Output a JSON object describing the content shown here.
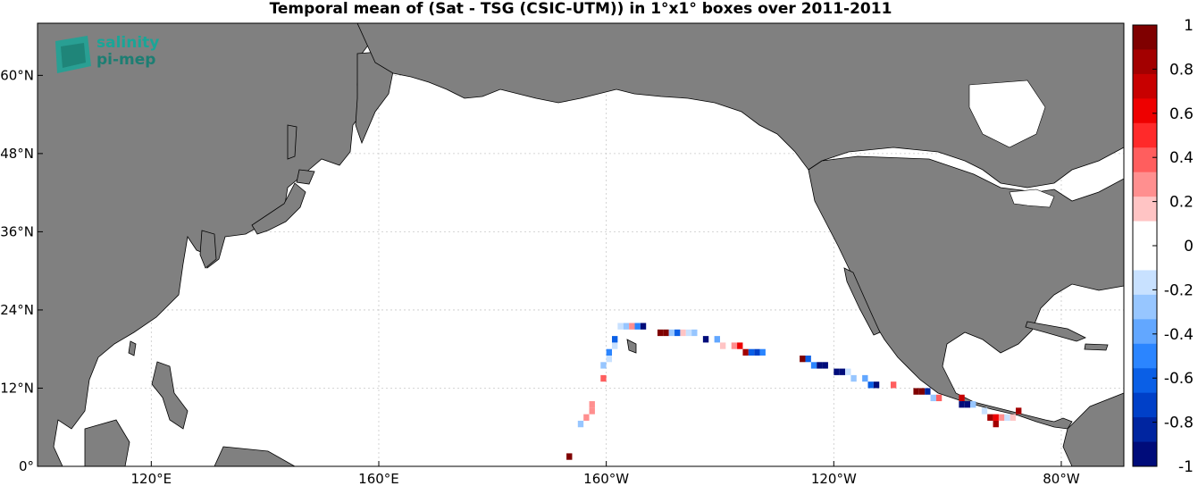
{
  "title": "Temporal mean of (Sat - TSG (CSIC-UTM)) in 1°x1° boxes over 2011-2011",
  "logo": {
    "line1": "salinity",
    "line2": "pi-mep"
  },
  "axes": {
    "lon_ticks": [
      {
        "lon": 120,
        "label": "120°E"
      },
      {
        "lon": 160,
        "label": "160°E"
      },
      {
        "lon": 200,
        "label": "160°W"
      },
      {
        "lon": 240,
        "label": "120°W"
      },
      {
        "lon": 280,
        "label": "80°W"
      }
    ],
    "lat_ticks": [
      {
        "lat": 0,
        "label": "0°"
      },
      {
        "lat": 12,
        "label": "12°N"
      },
      {
        "lat": 24,
        "label": "24°N"
      },
      {
        "lat": 36,
        "label": "36°N"
      },
      {
        "lat": 48,
        "label": "48°N"
      },
      {
        "lat": 60,
        "label": "60°N"
      }
    ],
    "lon_range": [
      100,
      291
    ],
    "lat_range": [
      0,
      68
    ]
  },
  "colorbar": {
    "min": -1,
    "max": 1,
    "labels": [
      "1",
      "0.8",
      "0.6",
      "0.4",
      "0.2",
      "0",
      "-0.2",
      "-0.4",
      "-0.6",
      "-0.8",
      "-1"
    ],
    "colors": [
      "#7f0000",
      "#a30000",
      "#c80000",
      "#ee0000",
      "#ff2a2a",
      "#ff5e5e",
      "#ff8f8f",
      "#ffc4c4",
      "#ffffff",
      "#ffffff",
      "#c8e1ff",
      "#97c6ff",
      "#62a7ff",
      "#2b85ff",
      "#0a5fe6",
      "#0040c8",
      "#0025a0",
      "#000c7a"
    ]
  },
  "colors": {
    "land": "#808080",
    "ocean": "#ffffff",
    "grid": "#c8c8c8"
  },
  "chart_data": {
    "type": "heatmap",
    "title": "Temporal mean of (Sat - TSG (CSIC-UTM)) in 1°x1° boxes over 2011-2011",
    "units_range": [
      -1,
      1
    ],
    "cells": [
      {
        "lon": 193.5,
        "lat": 1.5,
        "v": 0.9
      },
      {
        "lon": 195.5,
        "lat": 6.5,
        "v": -0.3
      },
      {
        "lon": 196.5,
        "lat": 7.5,
        "v": 0.3
      },
      {
        "lon": 197.5,
        "lat": 8.5,
        "v": 0.3
      },
      {
        "lon": 197.5,
        "lat": 9.5,
        "v": 0.3
      },
      {
        "lon": 199.5,
        "lat": 13.5,
        "v": 0.4
      },
      {
        "lon": 199.5,
        "lat": 15.5,
        "v": -0.3
      },
      {
        "lon": 200.5,
        "lat": 16.5,
        "v": -0.2
      },
      {
        "lon": 200.5,
        "lat": 17.5,
        "v": -0.5
      },
      {
        "lon": 201.5,
        "lat": 18.5,
        "v": -0.2
      },
      {
        "lon": 201.5,
        "lat": 19.5,
        "v": -0.6
      },
      {
        "lon": 202.5,
        "lat": 21.5,
        "v": -0.2
      },
      {
        "lon": 203.5,
        "lat": 21.5,
        "v": -0.3
      },
      {
        "lon": 204.5,
        "lat": 21.5,
        "v": 0.3
      },
      {
        "lon": 205.5,
        "lat": 21.5,
        "v": -0.5
      },
      {
        "lon": 206.5,
        "lat": 21.5,
        "v": -0.9
      },
      {
        "lon": 209.5,
        "lat": 20.5,
        "v": 1.0
      },
      {
        "lon": 210.5,
        "lat": 20.5,
        "v": 1.0
      },
      {
        "lon": 211.5,
        "lat": 20.5,
        "v": -0.3
      },
      {
        "lon": 212.5,
        "lat": 20.5,
        "v": -0.6
      },
      {
        "lon": 213.5,
        "lat": 20.5,
        "v": 0.2
      },
      {
        "lon": 214.5,
        "lat": 20.5,
        "v": -0.2
      },
      {
        "lon": 215.5,
        "lat": 20.5,
        "v": -0.3
      },
      {
        "lon": 217.5,
        "lat": 19.5,
        "v": -0.9
      },
      {
        "lon": 219.5,
        "lat": 19.5,
        "v": -0.4
      },
      {
        "lon": 220.5,
        "lat": 18.5,
        "v": 0.2
      },
      {
        "lon": 222.5,
        "lat": 18.5,
        "v": 0.3
      },
      {
        "lon": 223.5,
        "lat": 18.5,
        "v": 0.6
      },
      {
        "lon": 224.5,
        "lat": 17.5,
        "v": 0.8
      },
      {
        "lon": 225.5,
        "lat": 17.5,
        "v": -0.6
      },
      {
        "lon": 226.5,
        "lat": 17.5,
        "v": -0.7
      },
      {
        "lon": 227.5,
        "lat": 17.5,
        "v": -0.5
      },
      {
        "lon": 234.5,
        "lat": 16.5,
        "v": 1.0
      },
      {
        "lon": 235.5,
        "lat": 16.5,
        "v": -0.6
      },
      {
        "lon": 236.5,
        "lat": 15.5,
        "v": -0.5
      },
      {
        "lon": 237.5,
        "lat": 15.5,
        "v": -0.9
      },
      {
        "lon": 238.5,
        "lat": 15.5,
        "v": -0.9
      },
      {
        "lon": 240.5,
        "lat": 14.5,
        "v": -0.9
      },
      {
        "lon": 241.5,
        "lat": 14.5,
        "v": -0.9
      },
      {
        "lon": 242.5,
        "lat": 14.5,
        "v": -0.2
      },
      {
        "lon": 243.5,
        "lat": 13.5,
        "v": -0.3
      },
      {
        "lon": 245.5,
        "lat": 13.5,
        "v": -0.4
      },
      {
        "lon": 246.5,
        "lat": 12.5,
        "v": -0.6
      },
      {
        "lon": 247.5,
        "lat": 12.5,
        "v": -0.9
      },
      {
        "lon": 250.5,
        "lat": 12.5,
        "v": 0.4
      },
      {
        "lon": 254.5,
        "lat": 11.5,
        "v": 1.0
      },
      {
        "lon": 255.5,
        "lat": 11.5,
        "v": 1.0
      },
      {
        "lon": 256.5,
        "lat": 11.5,
        "v": -0.8
      },
      {
        "lon": 257.5,
        "lat": 10.5,
        "v": -0.3
      },
      {
        "lon": 258.5,
        "lat": 10.5,
        "v": 0.4
      },
      {
        "lon": 262.5,
        "lat": 10.5,
        "v": 0.7
      },
      {
        "lon": 262.5,
        "lat": 9.5,
        "v": -0.9
      },
      {
        "lon": 263.5,
        "lat": 9.5,
        "v": -0.9
      },
      {
        "lon": 264.5,
        "lat": 9.5,
        "v": -0.3
      },
      {
        "lon": 266.5,
        "lat": 8.5,
        "v": -0.2
      },
      {
        "lon": 267.5,
        "lat": 7.5,
        "v": 0.8
      },
      {
        "lon": 268.5,
        "lat": 6.5,
        "v": 0.8
      },
      {
        "lon": 268.5,
        "lat": 7.5,
        "v": 0.6
      },
      {
        "lon": 269.5,
        "lat": 7.5,
        "v": 0.3
      },
      {
        "lon": 270.5,
        "lat": 7.5,
        "v": -0.2
      },
      {
        "lon": 271.5,
        "lat": 7.5,
        "v": 0.2
      },
      {
        "lon": 272.5,
        "lat": 8.5,
        "v": 0.8
      }
    ]
  }
}
